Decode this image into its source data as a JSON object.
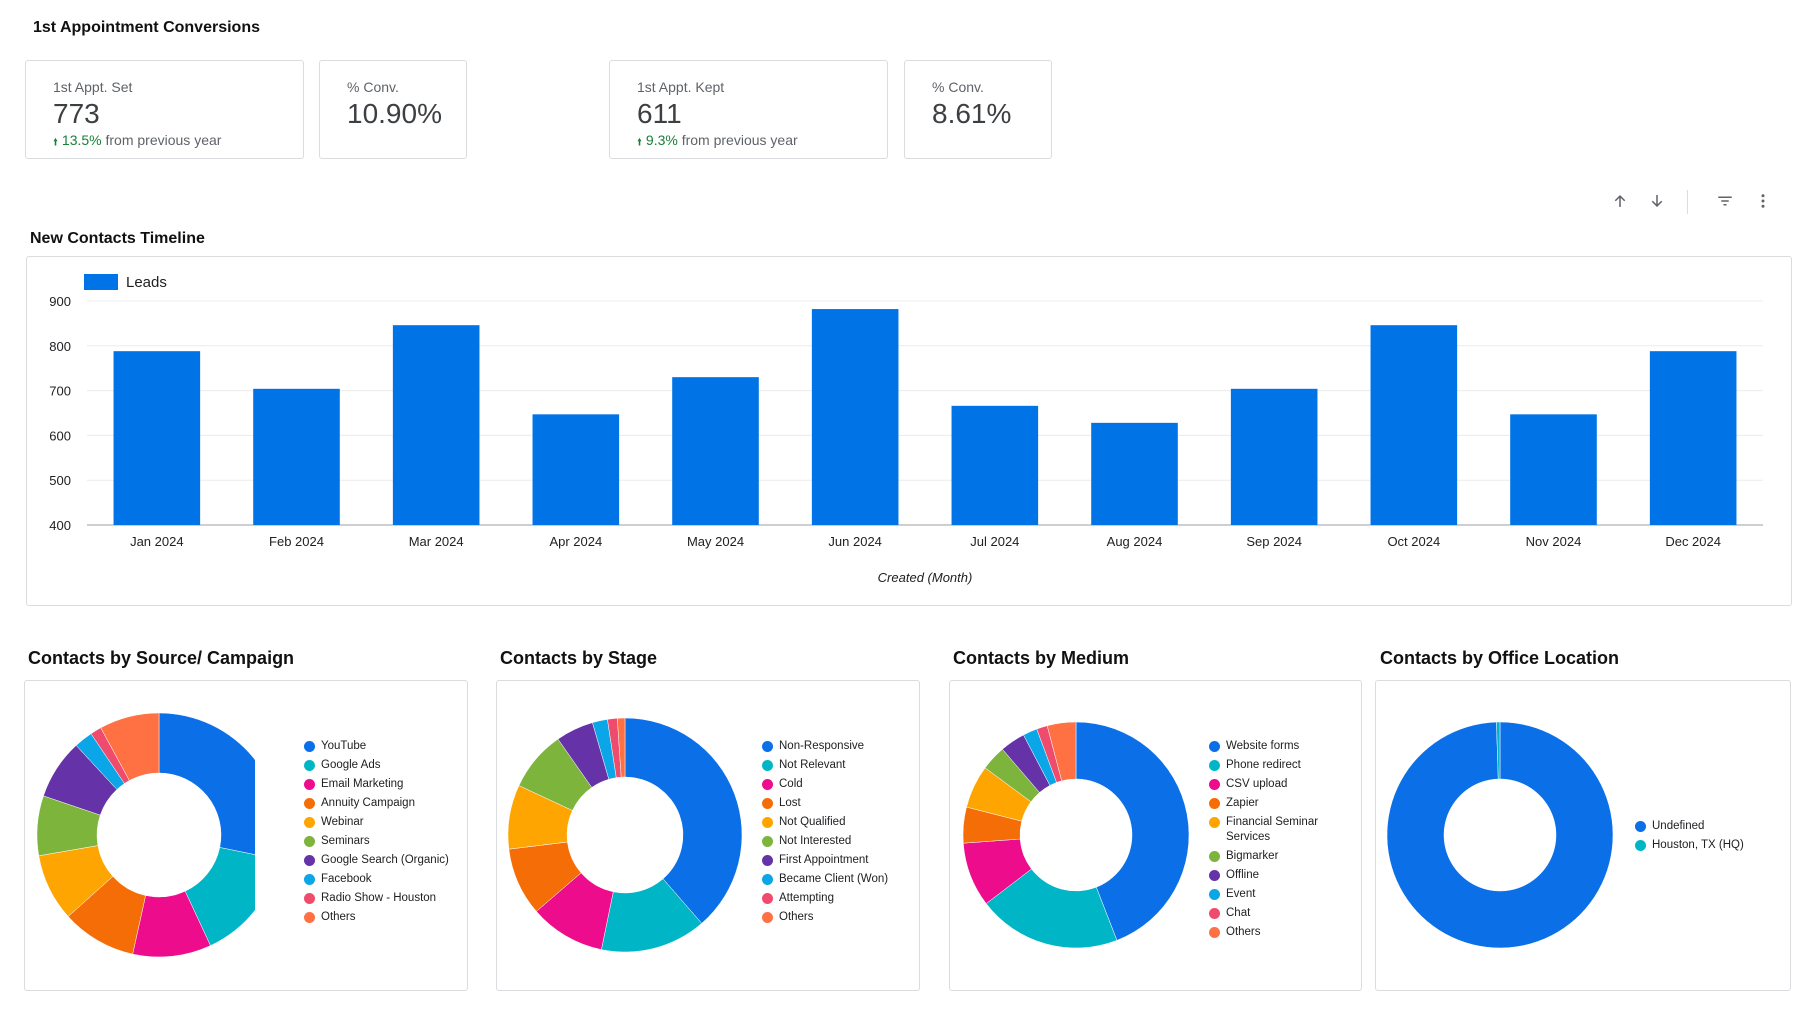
{
  "conversions": {
    "title": "1st Appointment Conversions",
    "kpis": [
      {
        "label": "1st Appt. Set",
        "value": "773",
        "delta": "13.5%",
        "delta_suffix": " from previous year"
      },
      {
        "label": "% Conv.",
        "value": "10.90%"
      },
      {
        "label": "1st Appt. Kept",
        "value": "611",
        "delta": "9.3%",
        "delta_suffix": " from previous year"
      },
      {
        "label": "% Conv.",
        "value": "8.61%"
      }
    ]
  },
  "toolbar": {
    "icons": [
      "arrow-up-icon",
      "arrow-down-icon",
      "filter-icon",
      "more-vert-icon"
    ]
  },
  "timeline": {
    "title": "New Contacts Timeline",
    "chart_data": {
      "type": "bar",
      "categories": [
        "Jan 2024",
        "Feb 2024",
        "Mar 2024",
        "Apr 2024",
        "May 2024",
        "Jun 2024",
        "Jul 2024",
        "Aug 2024",
        "Sep 2024",
        "Oct 2024",
        "Nov 2024",
        "Dec 2024"
      ],
      "series": [
        {
          "name": "Leads",
          "values": [
            788,
            704,
            846,
            647,
            730,
            882,
            666,
            628,
            704,
            846,
            647,
            788
          ]
        }
      ],
      "xlabel": "Created (Month)",
      "ylabel": "",
      "ylim": [
        400,
        900
      ],
      "yticks": [
        400,
        500,
        600,
        700,
        800,
        900
      ],
      "grid": true,
      "legend": "top-left",
      "color": "#0073e6"
    }
  },
  "donuts": [
    {
      "title": "Contacts by Source/ Campaign",
      "chart_data": {
        "type": "pie",
        "labels": [
          "YouTube",
          "Google Ads",
          "Email Marketing",
          "Annuity Campaign",
          "Webinar",
          "Seminars",
          "Google Search (Organic)",
          "Facebook",
          "Radio Show - Houston",
          "Others"
        ],
        "values": [
          28.5,
          15,
          10.5,
          10,
          9,
          8,
          8,
          2.5,
          1.5,
          8
        ],
        "colors": [
          "#0b6fe8",
          "#00b6c6",
          "#ec0c8c",
          "#f56d06",
          "#ffa502",
          "#7cb43c",
          "#6533a7",
          "#0aa6e8",
          "#ef4c6d",
          "#ff7043"
        ],
        "legend": "right"
      }
    },
    {
      "title": "Contacts by Stage",
      "chart_data": {
        "type": "pie",
        "labels": [
          "Non-Responsive",
          "Not Relevant",
          "Cold",
          "Lost",
          "Not Qualified",
          "Not Interested",
          "First Appointment",
          "Became Client (Won)",
          "Attempting",
          "Others"
        ],
        "values": [
          37,
          14,
          10,
          9,
          8.5,
          8,
          5,
          2,
          1.3,
          1
        ],
        "colors": [
          "#0b6fe8",
          "#00b6c6",
          "#ec0c8c",
          "#f56d06",
          "#ffa502",
          "#7cb43c",
          "#6533a7",
          "#0aa6e8",
          "#ef4c6d",
          "#ff7043"
        ],
        "legend": "right"
      }
    },
    {
      "title": "Contacts by Medium",
      "chart_data": {
        "type": "pie",
        "labels": [
          "Website forms",
          "Phone redirect",
          "CSV upload",
          "Zapier",
          "Financial Seminar Services",
          "Bigmarker",
          "Offline",
          "Event",
          "Chat",
          "Others"
        ],
        "values": [
          43,
          20,
          9,
          5,
          6,
          3.5,
          3.5,
          2,
          1.5,
          4
        ],
        "colors": [
          "#0b6fe8",
          "#00b6c6",
          "#ec0c8c",
          "#f56d06",
          "#ffa502",
          "#7cb43c",
          "#6533a7",
          "#0aa6e8",
          "#ef4c6d",
          "#ff7043"
        ],
        "legend": "right"
      }
    },
    {
      "title": "Contacts by Office Location",
      "chart_data": {
        "type": "pie",
        "labels": [
          "Undefined",
          "Houston, TX (HQ)"
        ],
        "values": [
          99.5,
          0.5
        ],
        "colors": [
          "#0b6fe8",
          "#00b6c6"
        ],
        "legend": "right"
      }
    }
  ]
}
